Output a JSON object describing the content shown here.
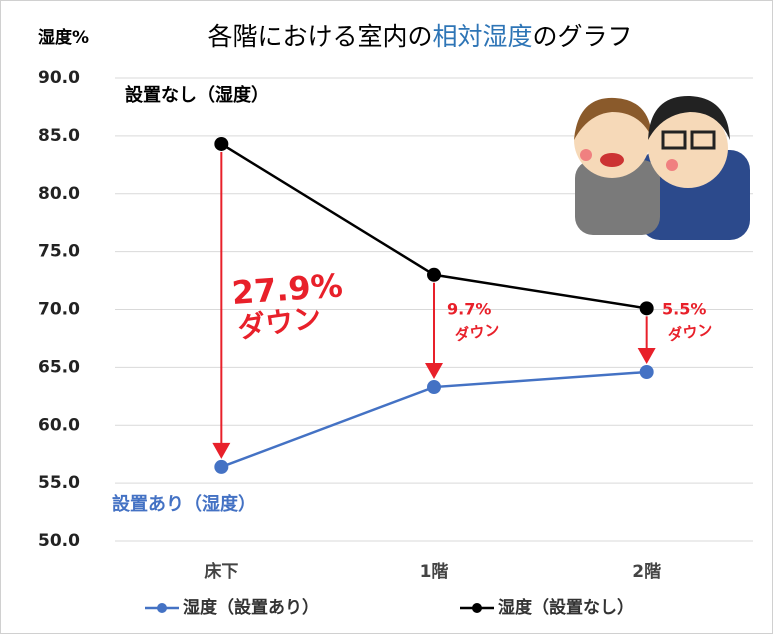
{
  "chart_data": {
    "type": "line",
    "title_parts": [
      "各階における室内の",
      "相対湿度",
      "のグラフ"
    ],
    "title_highlight_color": "#2e75b6",
    "y_label": "湿度%",
    "categories": [
      "床下",
      "1階",
      "2階"
    ],
    "series": [
      {
        "name": "湿度（設置あり）",
        "color": "#4472c4",
        "values": [
          56.4,
          63.3,
          64.6
        ]
      },
      {
        "name": "湿度（設置なし）",
        "color": "#000000",
        "values": [
          84.3,
          73.0,
          70.1
        ]
      }
    ],
    "ylim": [
      50,
      90
    ],
    "yticks": [
      {
        "value": 50,
        "label": "50.0"
      },
      {
        "value": 55,
        "label": "55.0"
      },
      {
        "value": 60,
        "label": "60.0"
      },
      {
        "value": 65,
        "label": "65.0"
      },
      {
        "value": 70,
        "label": "70.0"
      },
      {
        "value": 75,
        "label": "75.0"
      },
      {
        "value": 80,
        "label": "80.0"
      },
      {
        "value": 85,
        "label": "85.0"
      },
      {
        "value": 90,
        "label": "90.0"
      }
    ],
    "grid": true,
    "legend": "bottom",
    "annotations": [
      "設置なし（湿度）",
      "設置あり（湿度）",
      "27.9%",
      "ダウン",
      "9.7%",
      "ダウン",
      "5.5%",
      "ダウン"
    ]
  }
}
